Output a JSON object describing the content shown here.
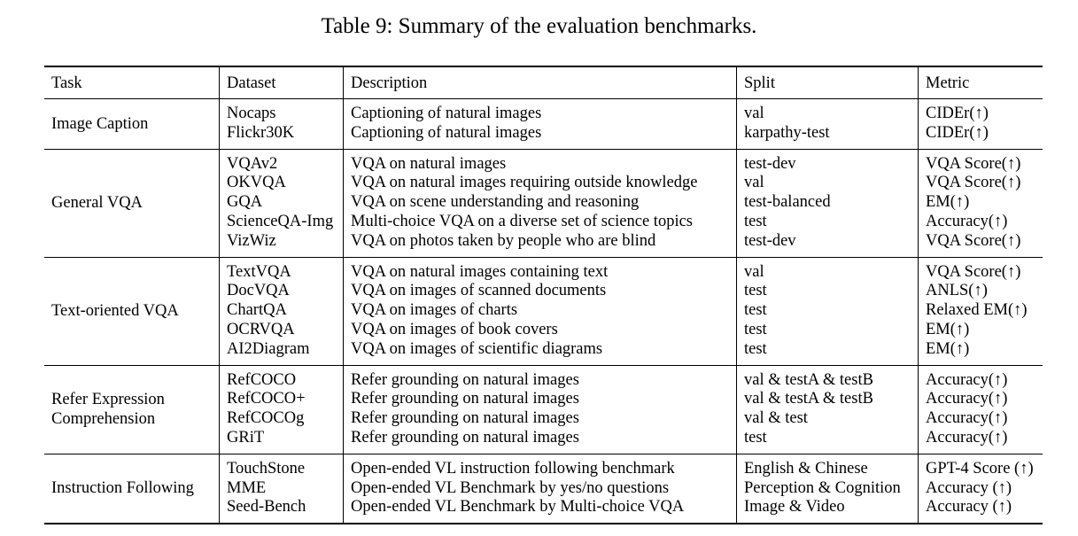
{
  "caption": "Table 9: Summary of the evaluation benchmarks.",
  "headers": {
    "task": "Task",
    "dataset": "Dataset",
    "description": "Description",
    "split": "Split",
    "metric": "Metric"
  },
  "groups": [
    {
      "task": [
        "Image Caption"
      ],
      "rows": [
        {
          "dataset": "Nocaps",
          "description": "Captioning of natural images",
          "split": "val",
          "metric": "CIDEr(↑)"
        },
        {
          "dataset": "Flickr30K",
          "description": "Captioning of natural images",
          "split": "karpathy-test",
          "metric": "CIDEr(↑)"
        }
      ]
    },
    {
      "task": [
        "General VQA"
      ],
      "rows": [
        {
          "dataset": "VQAv2",
          "description": "VQA on natural images",
          "split": "test-dev",
          "metric": "VQA Score(↑)"
        },
        {
          "dataset": "OKVQA",
          "description": "VQA on natural images requiring outside knowledge",
          "split": "val",
          "metric": "VQA Score(↑)"
        },
        {
          "dataset": "GQA",
          "description": "VQA on scene understanding and reasoning",
          "split": "test-balanced",
          "metric": "EM(↑)"
        },
        {
          "dataset": "ScienceQA-Img",
          "description": "Multi-choice VQA on a diverse set of science topics",
          "split": "test",
          "metric": "Accuracy(↑)"
        },
        {
          "dataset": "VizWiz",
          "description": "VQA on photos taken by people who are blind",
          "split": "test-dev",
          "metric": "VQA Score(↑)"
        }
      ]
    },
    {
      "task": [
        "Text-oriented VQA"
      ],
      "rows": [
        {
          "dataset": "TextVQA",
          "description": "VQA on natural images containing text",
          "split": "val",
          "metric": "VQA Score(↑)"
        },
        {
          "dataset": "DocVQA",
          "description": "VQA on images of scanned documents",
          "split": "test",
          "metric": "ANLS(↑)"
        },
        {
          "dataset": "ChartQA",
          "description": "VQA on images of charts",
          "split": "test",
          "metric": "Relaxed EM(↑)"
        },
        {
          "dataset": "OCRVQA",
          "description": "VQA on images of book covers",
          "split": "test",
          "metric": "EM(↑)"
        },
        {
          "dataset": "AI2Diagram",
          "description": "VQA on images of scientific diagrams",
          "split": "test",
          "metric": "EM(↑)"
        }
      ]
    },
    {
      "task": [
        "Refer Expression",
        "Comprehension"
      ],
      "rows": [
        {
          "dataset": "RefCOCO",
          "description": "Refer grounding on natural images",
          "split": "val & testA & testB",
          "metric": "Accuracy(↑)"
        },
        {
          "dataset": "RefCOCO+",
          "description": "Refer grounding on natural images",
          "split": "val & testA & testB",
          "metric": "Accuracy(↑)"
        },
        {
          "dataset": "RefCOCOg",
          "description": "Refer grounding on natural images",
          "split": "val & test",
          "metric": "Accuracy(↑)"
        },
        {
          "dataset": "GRiT",
          "description": "Refer grounding on natural images",
          "split": "test",
          "metric": "Accuracy(↑)"
        }
      ]
    },
    {
      "task": [
        "Instruction Following"
      ],
      "rows": [
        {
          "dataset": "TouchStone",
          "description": "Open-ended VL instruction following benchmark",
          "split": "English & Chinese",
          "metric": "GPT-4 Score (↑)"
        },
        {
          "dataset": "MME",
          "description": "Open-ended VL Benchmark by yes/no questions",
          "split": "Perception & Cognition",
          "metric": "Accuracy (↑)"
        },
        {
          "dataset": "Seed-Bench",
          "description": "Open-ended VL Benchmark by Multi-choice VQA",
          "split": "Image & Video",
          "metric": "Accuracy (↑)"
        }
      ]
    }
  ]
}
